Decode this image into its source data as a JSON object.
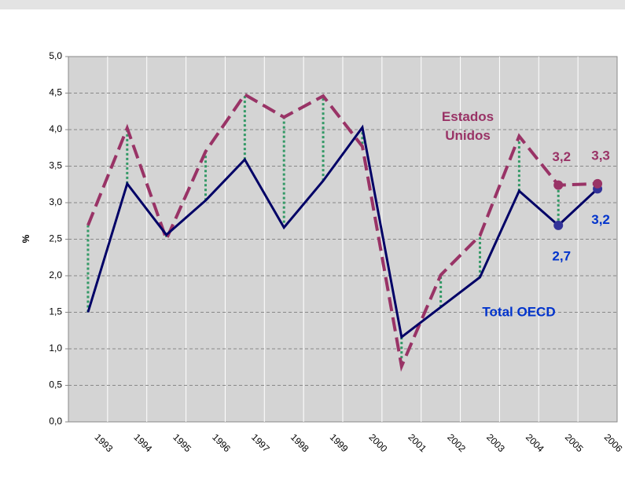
{
  "chart_data": {
    "type": "line",
    "y_label": "%",
    "categories": [
      "1993",
      "1994",
      "1995",
      "1996",
      "1997",
      "1998",
      "1999",
      "2000",
      "2001",
      "2002",
      "2003",
      "2004",
      "2005",
      "2006"
    ],
    "series": [
      {
        "name": "Total OECD",
        "color": "#000066",
        "line": "solid",
        "values": [
          1.5,
          3.26,
          2.56,
          3.03,
          3.59,
          2.66,
          3.3,
          4.03,
          1.16,
          1.57,
          1.98,
          3.16,
          2.69,
          3.19
        ],
        "value_labels": [
          null,
          null,
          null,
          null,
          null,
          null,
          null,
          null,
          null,
          null,
          null,
          null,
          "2,7",
          "3,2"
        ]
      },
      {
        "name": "Estados Unidos",
        "color": "#993366",
        "line": "dashed",
        "values": [
          2.69,
          4.02,
          2.5,
          3.7,
          4.48,
          4.17,
          4.46,
          3.77,
          0.76,
          2.01,
          2.55,
          3.91,
          3.24,
          3.26
        ],
        "value_labels": [
          null,
          null,
          null,
          null,
          null,
          null,
          null,
          null,
          null,
          null,
          null,
          null,
          "3,2",
          "3,3"
        ]
      }
    ],
    "ylim": [
      0,
      5
    ],
    "yticks": [
      {
        "value": 0,
        "label": "0,0"
      },
      {
        "value": 0.5,
        "label": "0,5"
      },
      {
        "value": 1,
        "label": "1,0"
      },
      {
        "value": 1.5,
        "label": "1,5"
      },
      {
        "value": 2,
        "label": "2,0"
      },
      {
        "value": 2.5,
        "label": "2,5"
      },
      {
        "value": 3,
        "label": "3,0"
      },
      {
        "value": 3.5,
        "label": "3,5"
      },
      {
        "value": 4,
        "label": "4,0"
      },
      {
        "value": 4.5,
        "label": "4,5"
      },
      {
        "value": 5,
        "label": "5,0"
      }
    ],
    "grid": true,
    "connector_color": "#339966",
    "legend": "inline"
  }
}
